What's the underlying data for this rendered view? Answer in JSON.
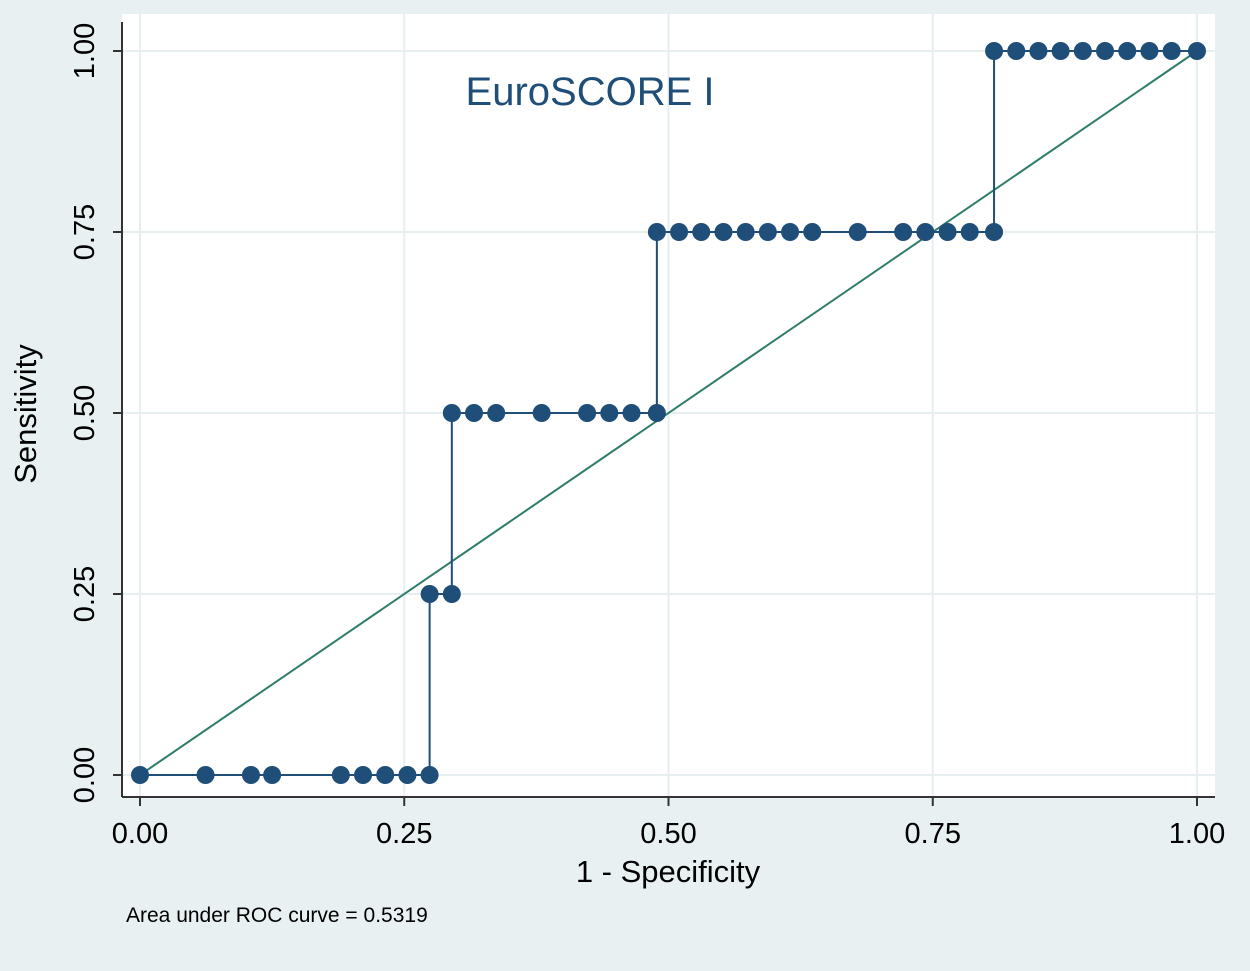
{
  "chart_data": {
    "type": "line",
    "annotation_title": "EuroSCORE I",
    "xlabel": "1 - Specificity",
    "ylabel": "Sensitivity",
    "note": "Area under ROC curve = 0.5319",
    "xlim": [
      0,
      1
    ],
    "ylim": [
      0,
      1
    ],
    "xticks": [
      0,
      0.25,
      0.5,
      0.75,
      1
    ],
    "yticks": [
      0,
      0.25,
      0.5,
      0.75,
      1
    ],
    "xtick_labels": [
      "0.00",
      "0.25",
      "0.50",
      "0.75",
      "1.00"
    ],
    "ytick_labels": [
      "0.00",
      "0.25",
      "0.50",
      "0.75",
      "1.00"
    ],
    "grid": true,
    "colors": {
      "roc": "#1f4e79",
      "reference": "#2e7d6b",
      "background": "#e9f0f2",
      "plot_area": "#ffffff",
      "grid": "#e6eef0",
      "text": "#000000",
      "title": "#1f4e79"
    },
    "series": [
      {
        "type": "step-line-with-markers",
        "points": [
          {
            "x": 0.0,
            "y": 0.0
          },
          {
            "x": 0.062,
            "y": 0.0
          },
          {
            "x": 0.105,
            "y": 0.0
          },
          {
            "x": 0.125,
            "y": 0.0
          },
          {
            "x": 0.19,
            "y": 0.0
          },
          {
            "x": 0.211,
            "y": 0.0
          },
          {
            "x": 0.232,
            "y": 0.0
          },
          {
            "x": 0.253,
            "y": 0.0
          },
          {
            "x": 0.274,
            "y": 0.0
          },
          {
            "x": 0.274,
            "y": 0.25
          },
          {
            "x": 0.295,
            "y": 0.25
          },
          {
            "x": 0.295,
            "y": 0.5
          },
          {
            "x": 0.316,
            "y": 0.5
          },
          {
            "x": 0.337,
            "y": 0.5
          },
          {
            "x": 0.38,
            "y": 0.5
          },
          {
            "x": 0.423,
            "y": 0.5
          },
          {
            "x": 0.444,
            "y": 0.5
          },
          {
            "x": 0.465,
            "y": 0.5
          },
          {
            "x": 0.489,
            "y": 0.5
          },
          {
            "x": 0.489,
            "y": 0.75
          },
          {
            "x": 0.51,
            "y": 0.75
          },
          {
            "x": 0.531,
            "y": 0.75
          },
          {
            "x": 0.552,
            "y": 0.75
          },
          {
            "x": 0.573,
            "y": 0.75
          },
          {
            "x": 0.594,
            "y": 0.75
          },
          {
            "x": 0.615,
            "y": 0.75
          },
          {
            "x": 0.636,
            "y": 0.75
          },
          {
            "x": 0.679,
            "y": 0.75
          },
          {
            "x": 0.722,
            "y": 0.75
          },
          {
            "x": 0.743,
            "y": 0.75
          },
          {
            "x": 0.764,
            "y": 0.75
          },
          {
            "x": 0.785,
            "y": 0.75
          },
          {
            "x": 0.808,
            "y": 0.75
          },
          {
            "x": 0.808,
            "y": 1.0
          },
          {
            "x": 0.829,
            "y": 1.0
          },
          {
            "x": 0.85,
            "y": 1.0
          },
          {
            "x": 0.871,
            "y": 1.0
          },
          {
            "x": 0.892,
            "y": 1.0
          },
          {
            "x": 0.913,
            "y": 1.0
          },
          {
            "x": 0.934,
            "y": 1.0
          },
          {
            "x": 0.955,
            "y": 1.0
          },
          {
            "x": 0.976,
            "y": 1.0
          },
          {
            "x": 1.0,
            "y": 1.0
          }
        ]
      },
      {
        "type": "reference-line",
        "points": [
          {
            "x": 0,
            "y": 0
          },
          {
            "x": 1,
            "y": 1
          }
        ]
      }
    ]
  }
}
